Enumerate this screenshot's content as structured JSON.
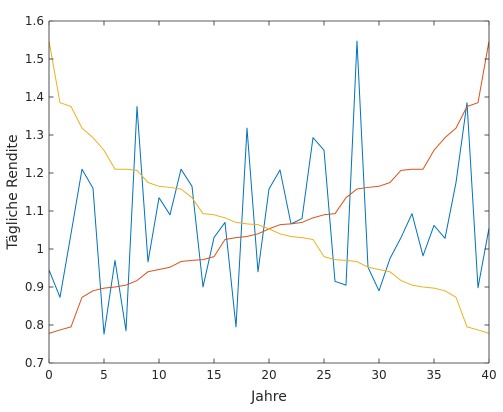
{
  "chart_data": {
    "type": "line",
    "title": "",
    "xlabel": "Jahre",
    "ylabel": "Tägliche Rendite",
    "xlim": [
      0,
      40
    ],
    "ylim": [
      0.7,
      1.6
    ],
    "xticks": [
      0,
      5,
      10,
      15,
      20,
      25,
      30,
      35,
      40
    ],
    "xtick_labels": [
      "0",
      "5",
      "10",
      "15",
      "20",
      "25",
      "30",
      "35",
      "40"
    ],
    "yticks": [
      0.7,
      0.8,
      0.9,
      1,
      1.1,
      1.2,
      1.3,
      1.4,
      1.5,
      1.6
    ],
    "ytick_labels": [
      "0.7",
      "0.8",
      "0.9",
      "1",
      "1.1",
      "1.2",
      "1.3",
      "1.4",
      "1.5",
      "1.6"
    ],
    "grid": false,
    "legend": "none",
    "x": [
      0,
      1,
      2,
      3,
      4,
      5,
      6,
      7,
      8,
      9,
      10,
      11,
      12,
      13,
      14,
      15,
      16,
      17,
      18,
      19,
      20,
      21,
      22,
      23,
      24,
      25,
      26,
      27,
      28,
      29,
      30,
      31,
      32,
      33,
      34,
      35,
      36,
      37,
      38,
      39,
      40
    ],
    "series": [
      {
        "color": "#0072BD",
        "values": [
          0.945,
          0.873,
          1.04,
          1.21,
          1.16,
          0.776,
          0.97,
          0.785,
          1.375,
          0.966,
          1.135,
          1.09,
          1.21,
          1.165,
          0.9,
          1.03,
          1.07,
          0.795,
          1.318,
          0.94,
          1.158,
          1.208,
          1.066,
          1.08,
          1.293,
          1.26,
          0.915,
          0.905,
          1.547,
          0.952,
          0.89,
          0.975,
          1.03,
          1.093,
          0.982,
          1.062,
          1.028,
          1.175,
          1.385,
          0.898,
          1.055
        ]
      },
      {
        "color": "#D95319",
        "values": [
          0.778,
          0.787,
          0.795,
          0.873,
          0.89,
          0.897,
          0.9,
          0.905,
          0.917,
          0.94,
          0.946,
          0.952,
          0.967,
          0.97,
          0.972,
          0.98,
          1.025,
          1.03,
          1.033,
          1.04,
          1.053,
          1.064,
          1.066,
          1.07,
          1.082,
          1.09,
          1.093,
          1.135,
          1.158,
          1.162,
          1.165,
          1.175,
          1.207,
          1.21,
          1.21,
          1.26,
          1.293,
          1.318,
          1.375,
          1.385,
          1.547
        ]
      },
      {
        "color": "#EDB120",
        "values": [
          1.547,
          1.385,
          1.375,
          1.318,
          1.293,
          1.26,
          1.21,
          1.21,
          1.207,
          1.175,
          1.165,
          1.162,
          1.158,
          1.135,
          1.093,
          1.09,
          1.082,
          1.07,
          1.066,
          1.064,
          1.053,
          1.04,
          1.033,
          1.03,
          1.025,
          0.98,
          0.972,
          0.97,
          0.967,
          0.952,
          0.946,
          0.94,
          0.917,
          0.905,
          0.9,
          0.897,
          0.89,
          0.873,
          0.795,
          0.787,
          0.778
        ]
      }
    ]
  }
}
